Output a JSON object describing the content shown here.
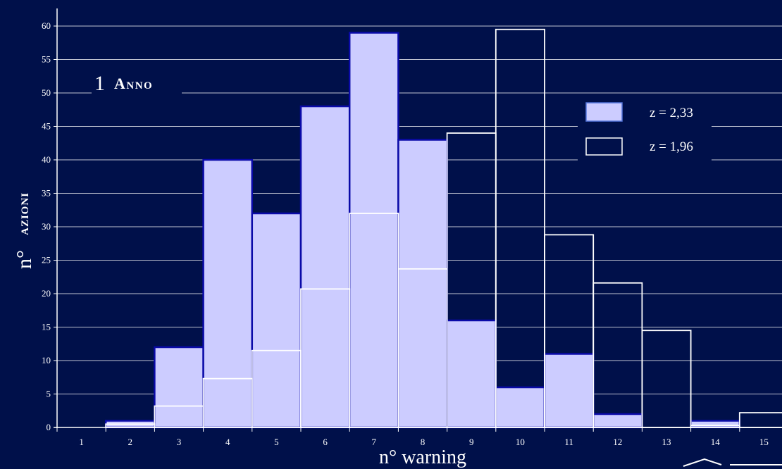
{
  "chart_data": {
    "type": "bar",
    "title": "1 Anno",
    "title_number": "1",
    "title_word": "Anno",
    "xlabel": "n° warning",
    "ylabel_prefix": "n°",
    "ylabel_word": "azioni",
    "categories": [
      "1",
      "2",
      "3",
      "4",
      "5",
      "6",
      "7",
      "8",
      "9",
      "10",
      "11",
      "12",
      "13",
      "14",
      "15"
    ],
    "ylim": [
      0,
      60
    ],
    "yticks": [
      0,
      5,
      10,
      15,
      20,
      25,
      30,
      35,
      40,
      45,
      50,
      55,
      60
    ],
    "grid": true,
    "legend_position": "right",
    "series": [
      {
        "name": "z = 2,33",
        "values": [
          0,
          1,
          12,
          40,
          32,
          48,
          59,
          43,
          16,
          6,
          11,
          2,
          0,
          1,
          0
        ],
        "fill": "#ccccff",
        "stroke": "#0a0aa8"
      },
      {
        "name": "z = 1,96",
        "values": [
          0,
          0.5,
          3.2,
          7.3,
          11.5,
          20.7,
          32,
          23.7,
          44,
          59.5,
          28.8,
          21.6,
          14.5,
          0.3,
          2.2
        ],
        "fill": "none",
        "stroke": "#ffffff"
      }
    ]
  },
  "colors": {
    "background": "#00104a",
    "grid": "#ffffff",
    "axis": "#ffffff"
  }
}
